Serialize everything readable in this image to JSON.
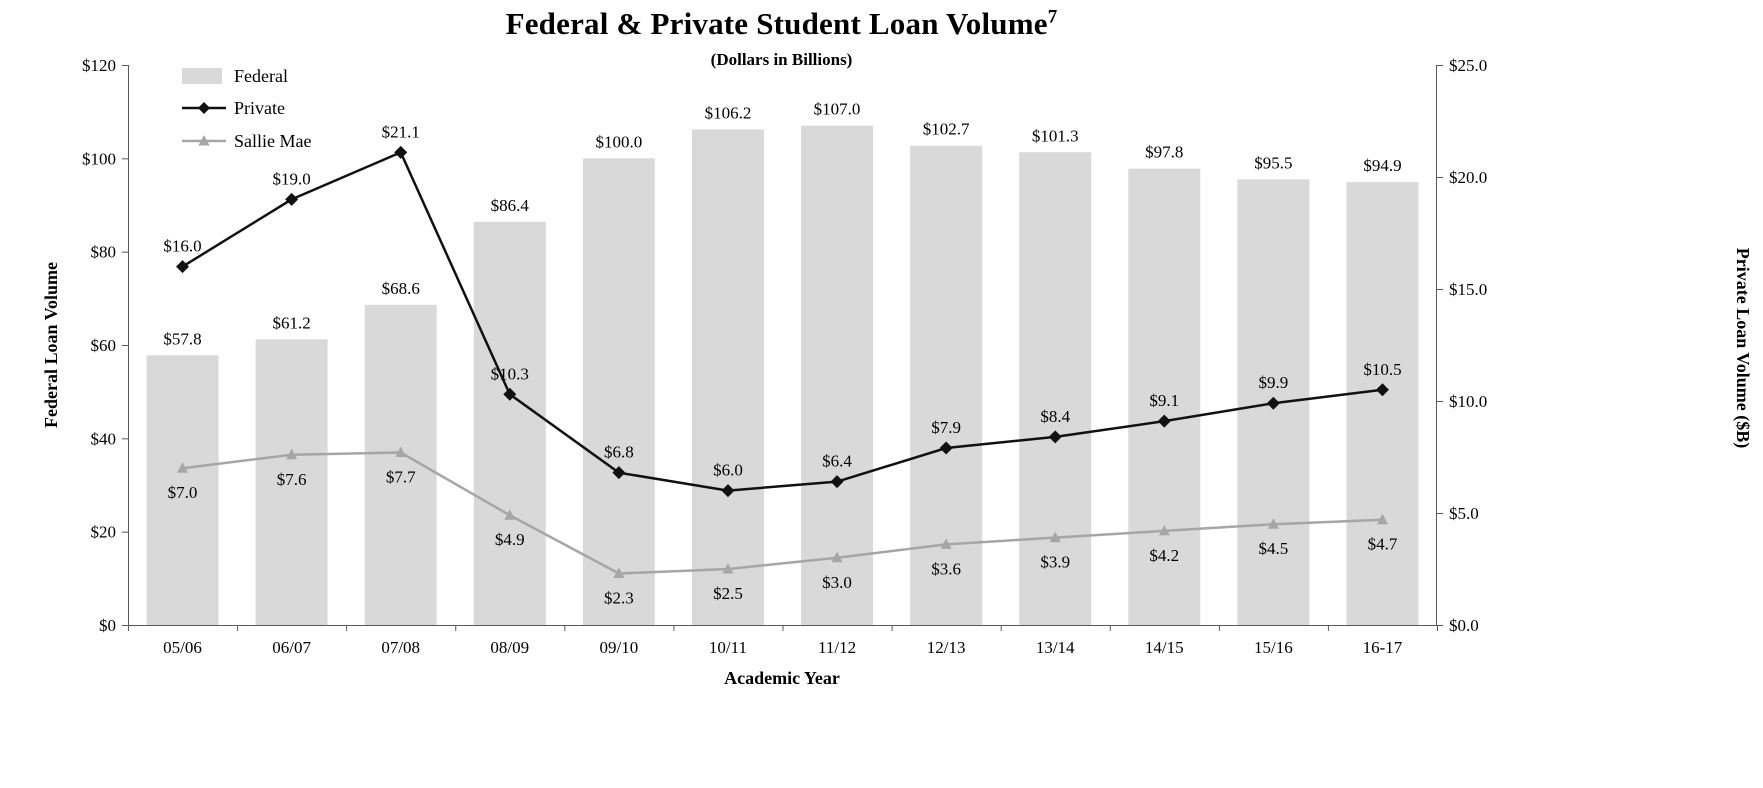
{
  "header": {
    "title": "Federal & Private Student Loan Volume",
    "footnote_marker": "7",
    "subtitle": "(Dollars in Billions)"
  },
  "axes": {
    "left_label": "Federal Loan Volume",
    "right_label": "Private Loan Volume ($B)",
    "x_label": "Academic Year",
    "left_ticks": [
      "$0",
      "$20",
      "$40",
      "$60",
      "$80",
      "$100",
      "$120"
    ],
    "right_ticks": [
      "$0.0",
      "$5.0",
      "$10.0",
      "$15.0",
      "$20.0",
      "$25.0"
    ]
  },
  "legend": [
    {
      "label": "Federal",
      "type": "bar"
    },
    {
      "label": "Private",
      "type": "line-diamond"
    },
    {
      "label": "Sallie Mae",
      "type": "line-triangle"
    }
  ],
  "colors": {
    "bar": "#d9d9d9",
    "private": "#111111",
    "sallie": "#a6a6a6",
    "axis": "#595959",
    "text": "#000000"
  },
  "chart_data": {
    "type": "bar",
    "title": "Federal & Private Student Loan Volume",
    "subtitle": "(Dollars in Billions)",
    "xlabel": "Academic Year",
    "ylabel_left": "Federal Loan Volume",
    "ylabel_right": "Private Loan Volume ($B)",
    "ylim_left": [
      0,
      120
    ],
    "ylim_right": [
      0,
      25
    ],
    "grid": false,
    "legend_position": "top-left",
    "categories": [
      "05/06",
      "06/07",
      "07/08",
      "08/09",
      "09/10",
      "10/11",
      "11/12",
      "12/13",
      "13/14",
      "14/15",
      "15/16",
      "16-17"
    ],
    "series": [
      {
        "name": "Federal",
        "type": "bar",
        "axis": "left",
        "values": [
          57.8,
          61.2,
          68.6,
          86.4,
          100.0,
          106.2,
          107.0,
          102.7,
          101.3,
          97.8,
          95.5,
          94.9
        ]
      },
      {
        "name": "Private",
        "type": "line",
        "axis": "right",
        "marker": "diamond",
        "values": [
          16.0,
          19.0,
          21.1,
          10.3,
          6.8,
          6.0,
          6.4,
          7.9,
          8.4,
          9.1,
          9.9,
          10.5
        ]
      },
      {
        "name": "Sallie Mae",
        "type": "line",
        "axis": "right",
        "marker": "triangle",
        "values": [
          7.0,
          7.6,
          7.7,
          4.9,
          2.3,
          2.5,
          3.0,
          3.6,
          3.9,
          4.2,
          4.5,
          4.7
        ]
      }
    ]
  }
}
